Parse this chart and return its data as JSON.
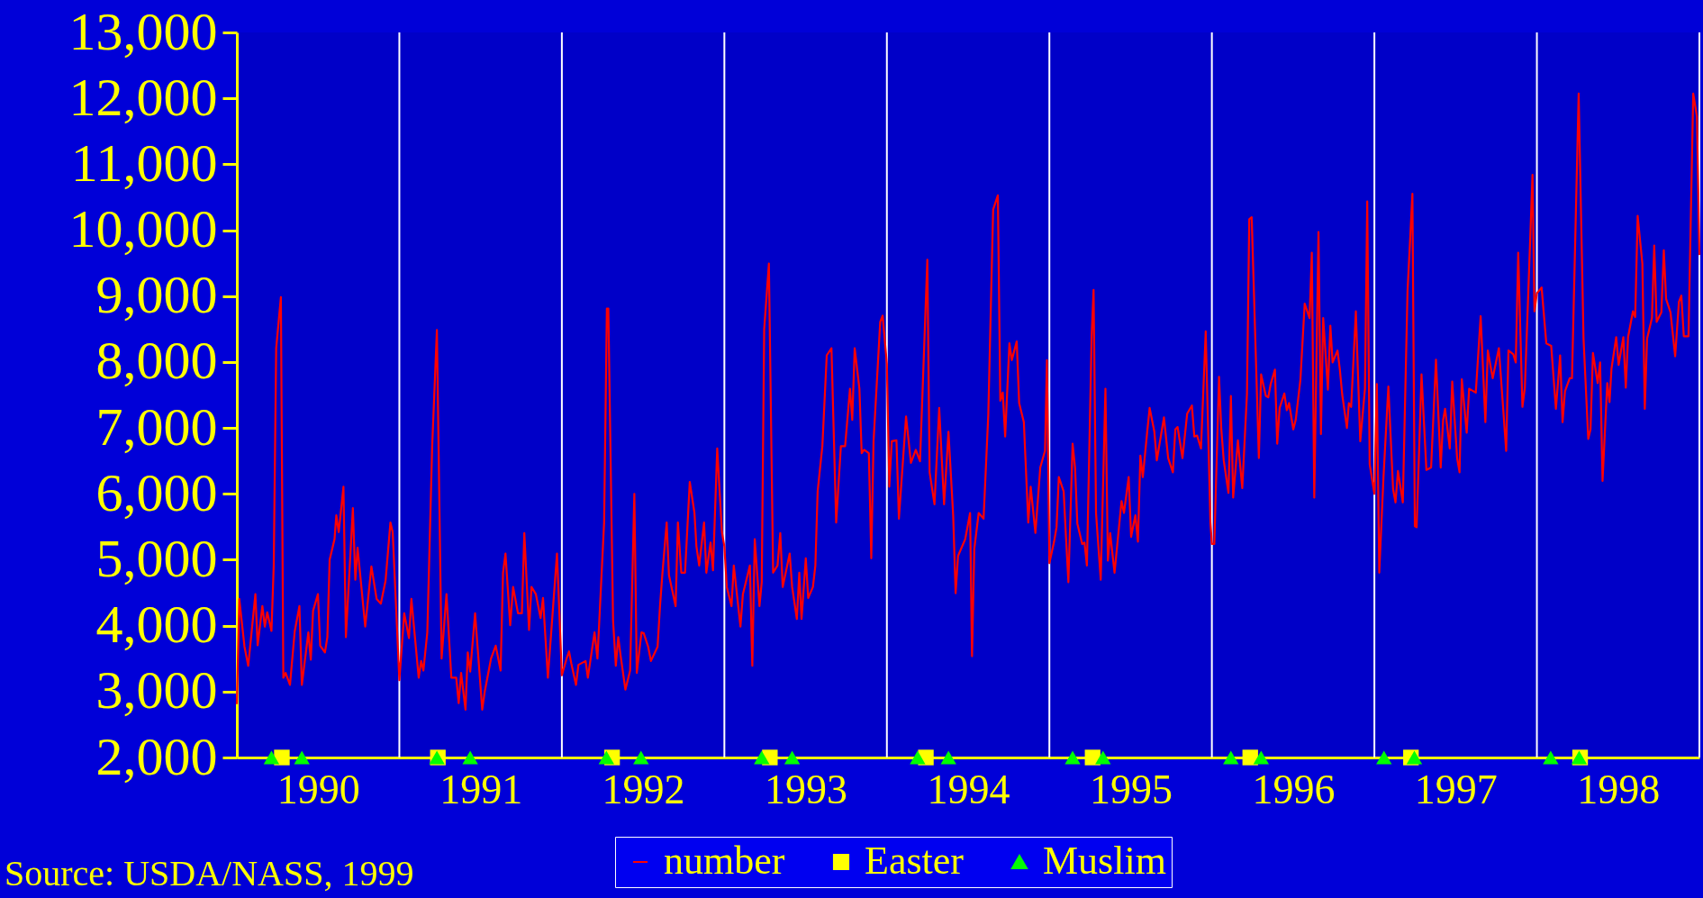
{
  "chart_data": {
    "type": "line",
    "series": [
      {
        "name": "number",
        "color": "#ff0000",
        "x": [
          1990.0,
          1990.015,
          1990.047,
          1990.07,
          1990.114,
          1990.128,
          1990.157,
          1990.172,
          1990.187,
          1990.213,
          1990.227,
          1990.242,
          1990.271,
          1990.286,
          1990.3,
          1990.327,
          1990.356,
          1990.385,
          1990.4,
          1990.44,
          1990.455,
          1990.469,
          1990.499,
          1990.513,
          1990.542,
          1990.557,
          1990.571,
          1990.601,
          1990.612,
          1990.627,
          1990.656,
          1990.671,
          1990.714,
          1990.729,
          1990.743,
          1990.79,
          1990.828,
          1990.86,
          1990.886,
          1990.915,
          1990.945,
          1990.959,
          1991.0,
          1991.03,
          1991.059,
          1991.074,
          1991.119,
          1991.134,
          1991.148,
          1991.172,
          1991.202,
          1991.231,
          1991.26,
          1991.29,
          1991.32,
          1991.35,
          1991.365,
          1991.38,
          1991.407,
          1991.421,
          1991.436,
          1991.466,
          1991.51,
          1991.525,
          1991.564,
          1991.593,
          1991.623,
          1991.638,
          1991.653,
          1991.682,
          1991.7,
          1991.73,
          1991.754,
          1991.769,
          1991.798,
          1991.813,
          1991.84,
          1991.869,
          1991.884,
          1991.914,
          1991.97,
          1992.0,
          1992.029,
          1992.044,
          1992.058,
          1992.087,
          1992.102,
          1992.146,
          1992.16,
          1992.201,
          1992.219,
          1992.26,
          1992.277,
          1992.286,
          1992.315,
          1992.332,
          1992.347,
          1992.362,
          1992.391,
          1992.42,
          1992.446,
          1992.461,
          1992.49,
          1992.504,
          1992.531,
          1992.548,
          1992.589,
          1992.604,
          1992.618,
          1992.645,
          1992.659,
          1992.7,
          1992.714,
          1992.735,
          1992.758,
          1992.787,
          1992.816,
          1992.828,
          1992.845,
          1992.875,
          1992.889,
          1992.915,
          1992.93,
          1992.956,
          1992.985,
          1993.0,
          1993.015,
          1993.044,
          1993.058,
          1993.099,
          1993.114,
          1993.157,
          1993.172,
          1993.187,
          1993.216,
          1993.23,
          1993.245,
          1993.274,
          1993.3,
          1993.327,
          1993.344,
          1993.359,
          1993.402,
          1993.417,
          1993.446,
          1993.461,
          1993.475,
          1993.501,
          1993.516,
          1993.545,
          1993.56,
          1993.574,
          1993.603,
          1993.63,
          1993.659,
          1993.688,
          1993.717,
          1993.743,
          1993.773,
          1993.787,
          1993.802,
          1993.831,
          1993.845,
          1993.86,
          1993.889,
          1993.904,
          1993.918,
          1993.959,
          1993.974,
          1994.0,
          1994.015,
          1994.03,
          1994.059,
          1994.074,
          1994.118,
          1994.148,
          1994.178,
          1994.204,
          1994.249,
          1994.263,
          1994.293,
          1994.322,
          1994.352,
          1994.379,
          1994.408,
          1994.423,
          1994.438,
          1994.482,
          1994.512,
          1994.524,
          1994.538,
          1994.565,
          1994.595,
          1994.624,
          1994.654,
          1994.683,
          1994.698,
          1994.713,
          1994.728,
          1994.754,
          1994.769,
          1994.799,
          1994.814,
          1994.843,
          1994.87,
          1994.885,
          1994.914,
          1994.944,
          1994.973,
          1994.985,
          1995.0,
          1995.029,
          1995.044,
          1995.058,
          1995.088,
          1995.102,
          1995.117,
          1995.143,
          1995.158,
          1995.172,
          1995.202,
          1995.216,
          1995.231,
          1995.26,
          1995.272,
          1995.287,
          1995.316,
          1995.345,
          1995.36,
          1995.374,
          1995.401,
          1995.444,
          1995.459,
          1995.488,
          1995.503,
          1995.529,
          1995.545,
          1995.56,
          1995.575,
          1995.602,
          1995.617,
          1995.646,
          1995.661,
          1995.705,
          1995.731,
          1995.76,
          1995.775,
          1995.789,
          1995.819,
          1995.848,
          1995.877,
          1995.892,
          1995.909,
          1995.933,
          1995.962,
          1995.991,
          1996.0,
          1996.015,
          1996.044,
          1996.058,
          1996.073,
          1996.102,
          1996.117,
          1996.131,
          1996.16,
          1996.187,
          1996.216,
          1996.23,
          1996.245,
          1996.289,
          1996.303,
          1996.332,
          1996.347,
          1996.362,
          1996.388,
          1996.402,
          1996.417,
          1996.446,
          1996.461,
          1996.475,
          1996.501,
          1996.516,
          1996.545,
          1996.571,
          1996.601,
          1996.615,
          1996.63,
          1996.656,
          1996.671,
          1996.685,
          1996.714,
          1996.729,
          1996.743,
          1996.773,
          1996.787,
          1996.802,
          1996.831,
          1996.843,
          1996.857,
          1996.886,
          1996.913,
          1996.942,
          1996.956,
          1996.971,
          1997.0,
          1997.015,
          1997.03,
          1997.056,
          1997.086,
          1997.115,
          1997.13,
          1997.145,
          1997.175,
          1997.204,
          1997.234,
          1997.249,
          1997.26,
          1997.29,
          1997.32,
          1997.349,
          1997.379,
          1997.408,
          1997.423,
          1997.435,
          1997.464,
          1997.479,
          1997.509,
          1997.524,
          1997.538,
          1997.568,
          1997.583,
          1997.624,
          1997.654,
          1997.683,
          1997.698,
          1997.728,
          1997.766,
          1997.811,
          1997.825,
          1997.855,
          1997.87,
          1997.885,
          1997.911,
          1997.926,
          1997.973,
          1997.985,
          1998.0,
          1998.029,
          1998.058,
          1998.088,
          1998.117,
          1998.143,
          1998.158,
          1998.173,
          1998.202,
          1998.216,
          1998.257,
          1998.287,
          1998.316,
          1998.33,
          1998.345,
          1998.374,
          1998.389,
          1998.404,
          1998.433,
          1998.447,
          1998.459,
          1998.488,
          1998.503,
          1998.532,
          1998.547,
          1998.561,
          1998.591,
          1998.605,
          1998.62,
          1998.649,
          1998.664,
          1998.678,
          1998.708,
          1998.722,
          1998.737,
          1998.766,
          1998.781,
          1998.795,
          1998.822,
          1998.851,
          1998.874,
          1998.889,
          1998.904,
          1998.933,
          1998.962,
          1998.985,
          1999.0
        ],
        "values": [
          2810,
          4406,
          3681,
          3391,
          4478,
          3703,
          4297,
          3985,
          4203,
          3920,
          4913,
          8210,
          8985,
          3210,
          3283,
          3101,
          3913,
          4297,
          3101,
          3898,
          3485,
          4225,
          4478,
          3696,
          3594,
          3826,
          5000,
          5312,
          5674,
          5420,
          6109,
          3826,
          5783,
          4696,
          5181,
          3985,
          4899,
          4406,
          4333,
          4681,
          5565,
          5420,
          3174,
          4188,
          3812,
          4406,
          3210,
          3464,
          3319,
          3898,
          6724,
          8485,
          3500,
          4478,
          3210,
          3210,
          2826,
          3283,
          2725,
          3594,
          3304,
          4188,
          2725,
          2993,
          3500,
          3696,
          3319,
          4804,
          5094,
          4007,
          4587,
          4188,
          4188,
          5406,
          3935,
          4587,
          4478,
          4116,
          4420,
          3210,
          5094,
          3246,
          3500,
          3609,
          3427,
          3101,
          3406,
          3464,
          3210,
          3898,
          3500,
          5565,
          8811,
          8811,
          4080,
          3391,
          3826,
          3536,
          3029,
          3319,
          6000,
          3283,
          3898,
          3884,
          3681,
          3464,
          3681,
          4297,
          4768,
          5565,
          4768,
          4297,
          5565,
          4804,
          4804,
          6181,
          5710,
          5203,
          4913,
          5565,
          4804,
          5261,
          4841,
          6688,
          5420,
          5203,
          4587,
          4297,
          4913,
          3985,
          4478,
          4913,
          3391,
          5312,
          4297,
          4659,
          8500,
          9493,
          4804,
          4913,
          5406,
          4587,
          5094,
          4587,
          4101,
          4804,
          4101,
          5022,
          4420,
          4587,
          4913,
          6036,
          6724,
          8101,
          8210,
          5565,
          6724,
          6724,
          7594,
          7123,
          8210,
          7594,
          6616,
          6667,
          6616,
          5022,
          6797,
          8608,
          8703,
          7971,
          6109,
          6797,
          6812,
          5623,
          7174,
          6471,
          6667,
          6493,
          9551,
          6326,
          5841,
          7304,
          5841,
          6942,
          5674,
          4493,
          5058,
          5312,
          5710,
          3536,
          5167,
          5710,
          5623,
          7196,
          10312,
          10529,
          7413,
          7536,
          6870,
          8283,
          8029,
          8312,
          7377,
          7087,
          5565,
          6109,
          5406,
          6399,
          6652,
          8029,
          4949,
          5275,
          5493,
          6254,
          6036,
          5348,
          4659,
          6761,
          6399,
          5551,
          5239,
          5261,
          4913,
          8391,
          9094,
          5710,
          4696,
          7594,
          4986,
          5406,
          4804,
          5891,
          5710,
          6254,
          5348,
          5674,
          5275,
          6580,
          6254,
          6942,
          7304,
          6942,
          6507,
          7159,
          6543,
          6326,
          6978,
          7014,
          6543,
          7217,
          7340,
          6870,
          6884,
          6688,
          8464,
          5565,
          5239,
          5239,
          7775,
          6978,
          6507,
          6014,
          7486,
          5942,
          6812,
          6087,
          7522,
          10167,
          10196,
          6543,
          7812,
          7486,
          7464,
          7667,
          7884,
          6761,
          7304,
          7522,
          7268,
          7377,
          6978,
          7123,
          7739,
          8884,
          8667,
          9659,
          5942,
          9971,
          6906,
          8667,
          7580,
          8551,
          7993,
          8174,
          7899,
          7507,
          7000,
          7377,
          7319,
          8768,
          6797,
          7594,
          10435,
          6449,
          6000,
          7667,
          4804,
          6254,
          7630,
          6072,
          5870,
          6348,
          5870,
          9080,
          10551,
          5507,
          5493,
          7812,
          6362,
          6399,
          8036,
          6399,
          7123,
          7290,
          6688,
          7703,
          6543,
          6326,
          7739,
          6927,
          7594,
          7536,
          8696,
          7087,
          8174,
          7754,
          8210,
          6652,
          8174,
          8116,
          7993,
          9659,
          7319,
          7609,
          10841,
          8768,
          9043,
          9130,
          8283,
          8246,
          7290,
          8101,
          7087,
          7558,
          7754,
          7754,
          12072,
          8355,
          6833,
          6978,
          8138,
          7681,
          7993,
          6196,
          7681,
          7391,
          7899,
          8377,
          7957,
          8377,
          7609,
          8377,
          8768,
          8681,
          10217,
          9493,
          7290,
          8355,
          8667,
          9768,
          8609,
          8754,
          9696,
          8957,
          8754,
          8087,
          8913,
          9007,
          8391,
          8391,
          12072,
          11724,
          9623
        ]
      },
      {
        "name": "Easter",
        "type": "scatter",
        "marker": "square",
        "color": "#ffff00",
        "x": [
          1990.277,
          1991.237,
          1992.309,
          1993.28,
          1994.24,
          1995.266,
          1996.236,
          1997.225,
          1998.266
        ],
        "values": [
          2000,
          2000,
          2000,
          2000,
          2000,
          2000,
          2000,
          2000,
          2000
        ]
      },
      {
        "name": "Muslim",
        "type": "scatter",
        "marker": "triangle",
        "color": "#00ff00",
        "x": [
          1990.213,
          1990.4,
          1991.231,
          1991.436,
          1992.274,
          1992.487,
          1993.23,
          1993.417,
          1994.189,
          1994.379,
          1995.143,
          1995.33,
          1996.117,
          1996.303,
          1997.059,
          1997.246,
          1998.085,
          1998.26
        ],
        "values": [
          2000,
          2000,
          2000,
          2000,
          2000,
          2000,
          2000,
          2000,
          2000,
          2000,
          2000,
          2000,
          2000,
          2000,
          2000,
          2000,
          2000,
          2000
        ]
      }
    ],
    "xlim": [
      1990,
      1999
    ],
    "xticks": [
      {
        "value": 1990.5,
        "label": "1990"
      },
      {
        "value": 1991.5,
        "label": "1991"
      },
      {
        "value": 1992.5,
        "label": "1992"
      },
      {
        "value": 1993.5,
        "label": "1993"
      },
      {
        "value": 1994.5,
        "label": "1994"
      },
      {
        "value": 1995.5,
        "label": "1995"
      },
      {
        "value": 1996.5,
        "label": "1996"
      },
      {
        "value": 1997.5,
        "label": "1997"
      },
      {
        "value": 1998.5,
        "label": "1998"
      }
    ],
    "ylim": [
      2000,
      13000
    ],
    "yticks": [
      {
        "value": 2000,
        "label": "2,000"
      },
      {
        "value": 3000,
        "label": "3,000"
      },
      {
        "value": 4000,
        "label": "4,000"
      },
      {
        "value": 5000,
        "label": "5,000"
      },
      {
        "value": 6000,
        "label": "6,000"
      },
      {
        "value": 7000,
        "label": "7,000"
      },
      {
        "value": 8000,
        "label": "8,000"
      },
      {
        "value": 9000,
        "label": "9,000"
      },
      {
        "value": 10000,
        "label": "10,000"
      },
      {
        "value": 11000,
        "label": "11,000"
      },
      {
        "value": 12000,
        "label": "12,000"
      },
      {
        "value": 13000,
        "label": "13,000"
      }
    ],
    "ref_lines": [
      {
        "axis": "x",
        "value": 1991,
        "color": "#ffffff"
      },
      {
        "axis": "x",
        "value": 1992,
        "color": "#ffffff"
      },
      {
        "axis": "x",
        "value": 1993,
        "color": "#ffffff"
      },
      {
        "axis": "x",
        "value": 1994,
        "color": "#ffffff"
      },
      {
        "axis": "x",
        "value": 1995,
        "color": "#ffffff"
      },
      {
        "axis": "x",
        "value": 1996,
        "color": "#ffffff"
      },
      {
        "axis": "x",
        "value": 1997,
        "color": "#ffffff"
      },
      {
        "axis": "x",
        "value": 1998,
        "color": "#ffffff"
      },
      {
        "axis": "x",
        "value": 1999,
        "color": "#ffffff"
      }
    ],
    "grid": false,
    "legend": "bottom",
    "annotations": [
      "Source: USDA/NASS, 1999"
    ]
  }
}
